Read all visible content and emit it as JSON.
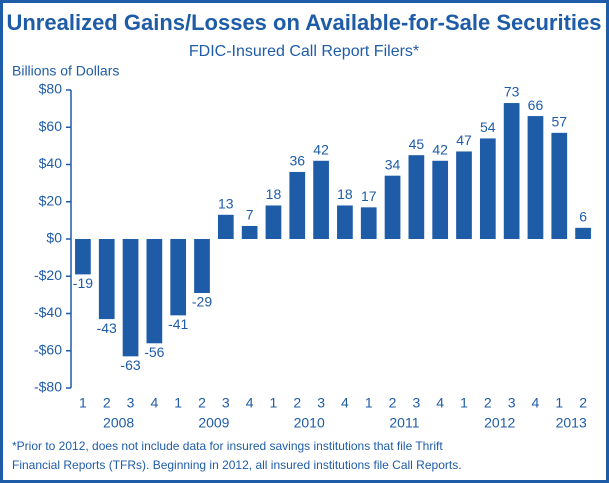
{
  "chart_data": {
    "type": "bar",
    "title": "Unrealized Gains/Losses on Available-for-Sale Securities",
    "subtitle": "FDIC-Insured Call Report Filers*",
    "y_label": "Billions of Dollars",
    "categories": [
      "1",
      "2",
      "3",
      "4",
      "1",
      "2",
      "3",
      "4",
      "1",
      "2",
      "3",
      "4",
      "1",
      "2",
      "3",
      "4",
      "1",
      "2",
      "3",
      "4",
      "1",
      "2"
    ],
    "x_groups": [
      "2008",
      "2009",
      "2010",
      "2011",
      "2012",
      "2013"
    ],
    "values": [
      -19,
      -43,
      -63,
      -56,
      -41,
      -29,
      13,
      7,
      18,
      36,
      42,
      18,
      17,
      34,
      45,
      42,
      47,
      54,
      73,
      66,
      57,
      6
    ],
    "color": "#1f5ca8",
    "ylim": [
      -80,
      80
    ],
    "yticks": [
      {
        "value": -80,
        "label": "-$80"
      },
      {
        "value": -60,
        "label": "-$60"
      },
      {
        "value": -40,
        "label": "-$40"
      },
      {
        "value": -20,
        "label": "-$20"
      },
      {
        "value": 0,
        "label": "$0"
      },
      {
        "value": 20,
        "label": "$20"
      },
      {
        "value": 40,
        "label": "$40"
      },
      {
        "value": 60,
        "label": "$60"
      },
      {
        "value": 80,
        "label": "$80"
      }
    ],
    "footnote": [
      "*Prior to 2012, does not include data for insured savings institutions that file Thrift",
      "Financial Reports (TFRs). Beginning in 2012, all insured institutions file Call Reports."
    ]
  }
}
